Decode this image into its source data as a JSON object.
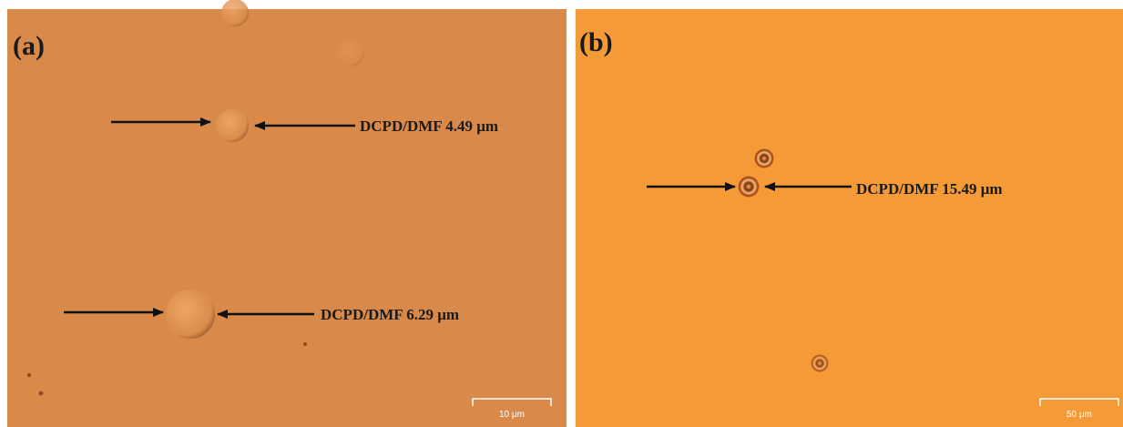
{
  "panels": [
    {
      "label": "(a)",
      "annotations": [
        "DCPD/DMF 4.49 μm",
        "DCPD/DMF 6.29 μm"
      ],
      "scale_bar": "10 μm"
    },
    {
      "label": "(b)",
      "annotations": [
        "DCPD/DMF 15.49 μm"
      ],
      "scale_bar": "50 μm"
    }
  ]
}
